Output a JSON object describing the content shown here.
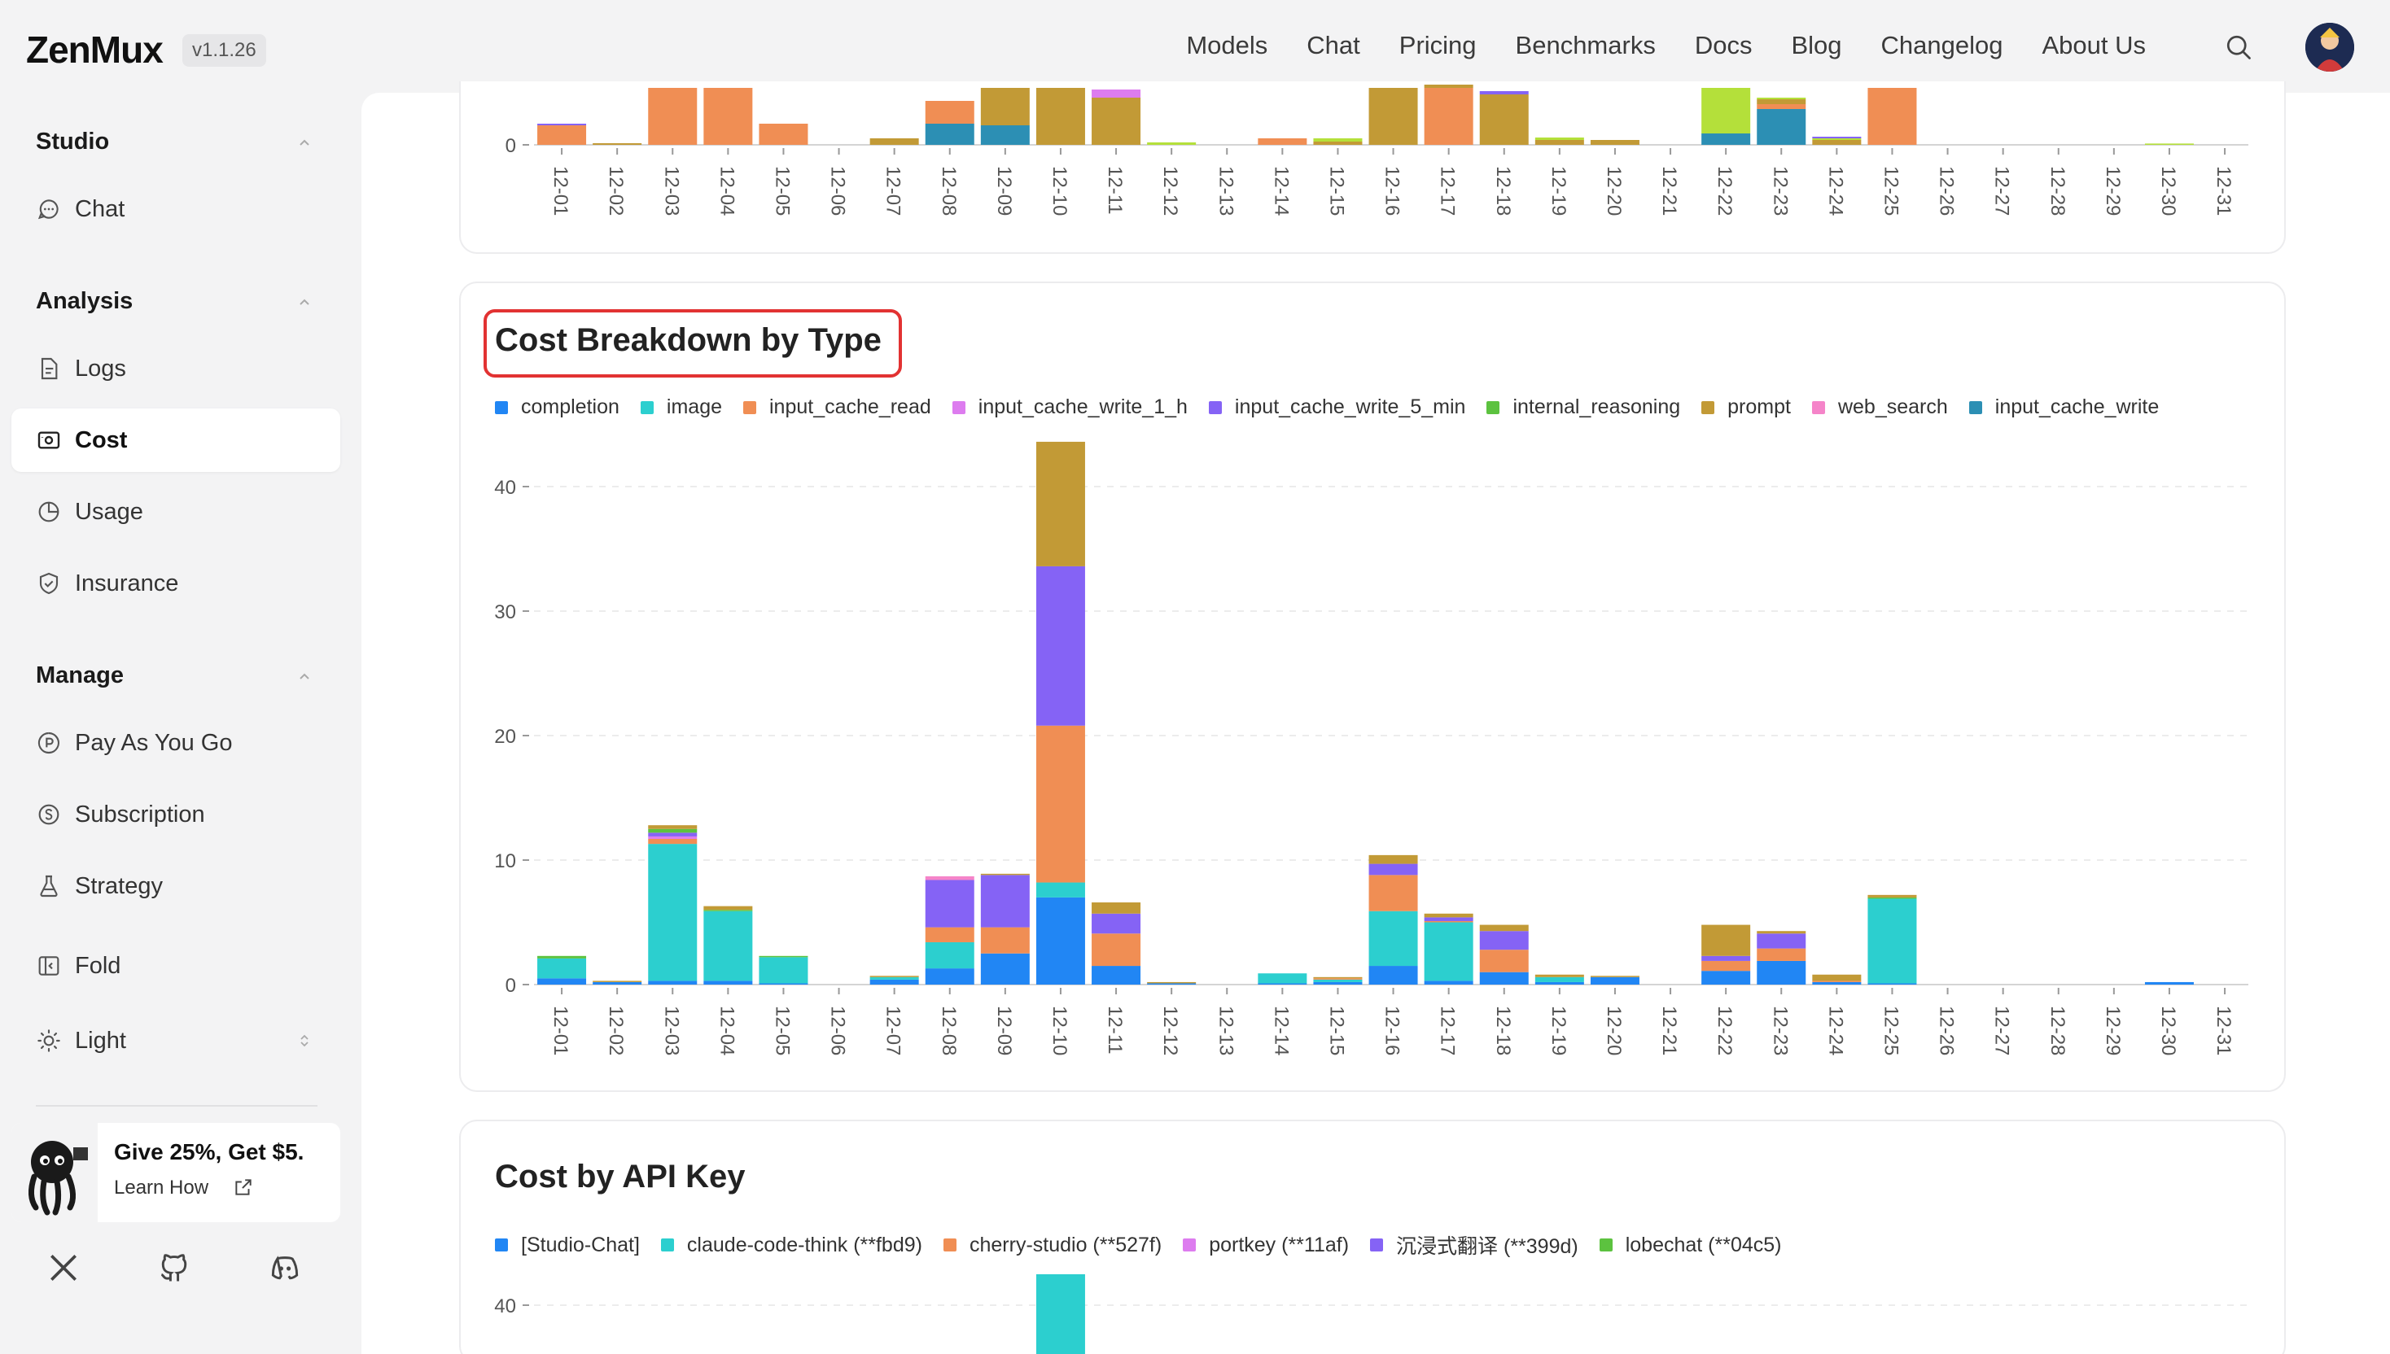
{
  "app": {
    "logo": "ZenMux",
    "version": "v1.1.26"
  },
  "nav": [
    "Models",
    "Chat",
    "Pricing",
    "Benchmarks",
    "Docs",
    "Blog",
    "Changelog",
    "About Us"
  ],
  "sidebar": {
    "studio": {
      "heading": "Studio",
      "items": [
        {
          "label": "Chat",
          "icon": "chat-icon"
        }
      ]
    },
    "analysis": {
      "heading": "Analysis",
      "items": [
        {
          "label": "Logs",
          "icon": "logs-icon"
        },
        {
          "label": "Cost",
          "icon": "cost-icon",
          "active": true
        },
        {
          "label": "Usage",
          "icon": "usage-icon"
        },
        {
          "label": "Insurance",
          "icon": "shield-icon"
        }
      ]
    },
    "manage": {
      "heading": "Manage",
      "items": [
        {
          "label": "Pay As You Go",
          "icon": "pay-icon"
        },
        {
          "label": "Subscription",
          "icon": "subscription-icon"
        },
        {
          "label": "Strategy",
          "icon": "flask-icon"
        },
        {
          "label": "Fold",
          "icon": "fold-icon"
        },
        {
          "label": "Light",
          "icon": "sun-icon"
        }
      ]
    },
    "promo": {
      "title": "Give 25%, Get $5.",
      "link": "Learn How"
    }
  },
  "cost_by_type": {
    "title": "Cost Breakdown by Type",
    "legend": [
      "completion",
      "image",
      "input_cache_read",
      "input_cache_write_1_h",
      "input_cache_write_5_min",
      "internal_reasoning",
      "prompt",
      "web_search",
      "input_cache_write"
    ]
  },
  "cost_by_key": {
    "title": "Cost by API Key",
    "legend": [
      "[Studio-Chat]",
      "claude-code-think (**fbd9)",
      "cherry-studio (**527f)",
      "portkey (**11af)",
      "沉浸式翻译 (**399d)",
      "lobechat (**04c5)"
    ]
  },
  "colors": {
    "completion": "#2186f4",
    "image": "#2ccfcf",
    "input_cache_read": "#f08e54",
    "input_cache_write_1_h": "#dd7cef",
    "input_cache_write_5_min": "#8563f5",
    "internal_reasoning": "#5cc23f",
    "prompt": "#c29a36",
    "web_search": "#f584c9",
    "input_cache_write": "#2c8fb4",
    "lime": "#b4e03a",
    "accent_red": "#e23232"
  },
  "chart_data": [
    {
      "type": "bar",
      "stacked": true,
      "title": "",
      "note": "Top chart, partially visible (scrolled); only the 0 tick is visible",
      "categories": [
        "12-01",
        "12-02",
        "12-03",
        "12-04",
        "12-05",
        "12-06",
        "12-07",
        "12-08",
        "12-09",
        "12-10",
        "12-11",
        "12-12",
        "12-13",
        "12-14",
        "12-15",
        "12-16",
        "12-17",
        "12-18",
        "12-19",
        "12-20",
        "12-21",
        "12-22",
        "12-23",
        "12-24",
        "12-25",
        "12-26",
        "12-27",
        "12-28",
        "12-29",
        "12-30",
        "12-31"
      ],
      "y_ticks": [
        0
      ],
      "visible_y_max": 3.5,
      "series": [
        {
          "name": "input_cache_write",
          "values": [
            0,
            0,
            0,
            0,
            0,
            0,
            0,
            1.3,
            1.2,
            0,
            0,
            0,
            0,
            0,
            0,
            0,
            0,
            0,
            0,
            0,
            0,
            0.7,
            2.2,
            0,
            0,
            0,
            0,
            0,
            0,
            0,
            0
          ]
        },
        {
          "name": "input_cache_read",
          "values": [
            1.2,
            0,
            3.5,
            3.5,
            1.3,
            0,
            0,
            1.4,
            0,
            0,
            0,
            0,
            0,
            0.4,
            0,
            0,
            3.5,
            0,
            0,
            0,
            0,
            0,
            0.3,
            0,
            3.5,
            0,
            0,
            0,
            0,
            0,
            0
          ]
        },
        {
          "name": "prompt",
          "values": [
            0,
            0.1,
            0,
            0,
            0,
            0,
            0.4,
            0,
            2.3,
            3.5,
            2.9,
            0,
            0,
            0,
            0.2,
            3.5,
            0.2,
            3.1,
            0.3,
            0.3,
            0,
            0,
            0.3,
            0.3,
            0,
            0,
            0,
            0,
            0,
            0,
            0
          ]
        },
        {
          "name": "lime",
          "values": [
            0,
            0,
            0,
            0,
            0,
            0,
            0,
            0,
            0,
            0,
            0,
            0.15,
            0,
            0,
            0.2,
            0,
            0,
            0,
            0.15,
            0,
            0,
            2.8,
            0.1,
            0.1,
            0,
            0,
            0,
            0,
            0,
            0.08,
            0
          ]
        },
        {
          "name": "input_cache_write_5_min",
          "values": [
            0.1,
            0,
            0,
            0,
            0,
            0,
            0,
            0,
            0,
            0,
            0,
            0,
            0,
            0,
            0,
            0,
            0,
            0.2,
            0,
            0,
            0,
            0,
            0,
            0.1,
            0,
            0,
            0,
            0,
            0,
            0,
            0
          ]
        },
        {
          "name": "input_cache_write_1_h",
          "values": [
            0,
            0,
            0,
            0,
            0,
            0,
            0,
            0,
            0,
            0,
            0.5,
            0,
            0,
            0,
            0,
            0,
            0,
            0,
            0,
            0,
            0,
            0,
            0,
            0,
            0,
            0,
            0,
            0,
            0,
            0,
            0
          ]
        }
      ]
    },
    {
      "type": "bar",
      "stacked": true,
      "title": "Cost Breakdown by Type",
      "xlabel": "",
      "ylabel": "",
      "ylim": [
        0,
        44
      ],
      "y_ticks": [
        0,
        10,
        20,
        30,
        40
      ],
      "categories": [
        "12-01",
        "12-02",
        "12-03",
        "12-04",
        "12-05",
        "12-06",
        "12-07",
        "12-08",
        "12-09",
        "12-10",
        "12-11",
        "12-12",
        "12-13",
        "12-14",
        "12-15",
        "12-16",
        "12-17",
        "12-18",
        "12-19",
        "12-20",
        "12-21",
        "12-22",
        "12-23",
        "12-24",
        "12-25",
        "12-26",
        "12-27",
        "12-28",
        "12-29",
        "12-30",
        "12-31"
      ],
      "series": [
        {
          "name": "completion",
          "values": [
            0.5,
            0.2,
            0.3,
            0.3,
            0.1,
            0,
            0.4,
            1.3,
            2.5,
            7.0,
            1.5,
            0.1,
            0,
            0.1,
            0.2,
            1.5,
            0.3,
            1.0,
            0.2,
            0.6,
            0,
            1.1,
            1.9,
            0.2,
            0.1,
            0,
            0,
            0,
            0,
            0.2,
            0
          ]
        },
        {
          "name": "image",
          "values": [
            1.6,
            0,
            11.0,
            5.6,
            2.1,
            0,
            0.2,
            2.1,
            0,
            1.2,
            0,
            0,
            0,
            0.8,
            0.2,
            4.4,
            4.7,
            0,
            0.4,
            0,
            0,
            0,
            0,
            0,
            6.8,
            0,
            0,
            0,
            0,
            0,
            0
          ]
        },
        {
          "name": "input_cache_read",
          "values": [
            0,
            0,
            0.4,
            0,
            0,
            0,
            0,
            1.2,
            2.1,
            12.6,
            2.6,
            0,
            0,
            0,
            0.1,
            2.9,
            0.1,
            1.8,
            0,
            0,
            0,
            0.8,
            1.0,
            0.1,
            0,
            0,
            0,
            0,
            0,
            0,
            0
          ]
        },
        {
          "name": "input_cache_write_1_h",
          "values": [
            0,
            0,
            0.2,
            0,
            0,
            0,
            0,
            0,
            0,
            0,
            0,
            0,
            0,
            0,
            0,
            0,
            0,
            0,
            0,
            0,
            0,
            0,
            0,
            0,
            0,
            0,
            0,
            0,
            0,
            0,
            0
          ]
        },
        {
          "name": "input_cache_write_5_min",
          "values": [
            0,
            0,
            0.3,
            0,
            0,
            0,
            0,
            3.8,
            4.2,
            12.8,
            1.6,
            0,
            0,
            0,
            0,
            0.9,
            0.3,
            1.5,
            0,
            0,
            0,
            0.4,
            1.2,
            0,
            0,
            0,
            0,
            0,
            0,
            0,
            0
          ]
        },
        {
          "name": "internal_reasoning",
          "values": [
            0.2,
            0,
            0.3,
            0.1,
            0.1,
            0,
            0,
            0,
            0,
            0,
            0,
            0,
            0,
            0,
            0,
            0,
            0,
            0,
            0,
            0,
            0,
            0,
            0,
            0,
            0.1,
            0,
            0,
            0,
            0,
            0,
            0
          ]
        },
        {
          "name": "prompt",
          "values": [
            0,
            0.1,
            0.3,
            0.3,
            0,
            0,
            0.1,
            0,
            0.1,
            10.0,
            0.9,
            0.1,
            0,
            0,
            0.1,
            0.7,
            0.3,
            0.5,
            0.2,
            0.1,
            0,
            2.5,
            0.2,
            0.5,
            0.2,
            0,
            0,
            0,
            0,
            0,
            0
          ]
        },
        {
          "name": "web_search",
          "values": [
            0,
            0,
            0,
            0,
            0,
            0,
            0,
            0.3,
            0,
            0,
            0,
            0,
            0,
            0,
            0,
            0,
            0,
            0,
            0,
            0,
            0,
            0,
            0,
            0,
            0,
            0,
            0,
            0,
            0,
            0,
            0
          ]
        },
        {
          "name": "input_cache_write",
          "values": [
            0,
            0,
            0,
            0,
            0,
            0,
            0,
            0,
            0,
            0,
            0,
            0,
            0,
            0,
            0,
            0,
            0,
            0,
            0,
            0,
            0,
            0,
            0,
            0,
            0,
            0,
            0,
            0,
            0,
            0,
            0
          ]
        }
      ]
    },
    {
      "type": "bar",
      "stacked": true,
      "title": "Cost by API Key",
      "note": "Partially visible (cut off at bottom)",
      "y_ticks": [
        40
      ],
      "categories": [
        "12-01",
        "12-02",
        "12-03",
        "12-04",
        "12-05",
        "12-06",
        "12-07",
        "12-08",
        "12-09",
        "12-10"
      ],
      "series": [
        {
          "name": "claude-code-think (**fbd9)",
          "values": [
            0,
            0,
            0,
            0,
            0,
            0,
            0,
            0,
            0,
            44
          ]
        }
      ]
    }
  ]
}
